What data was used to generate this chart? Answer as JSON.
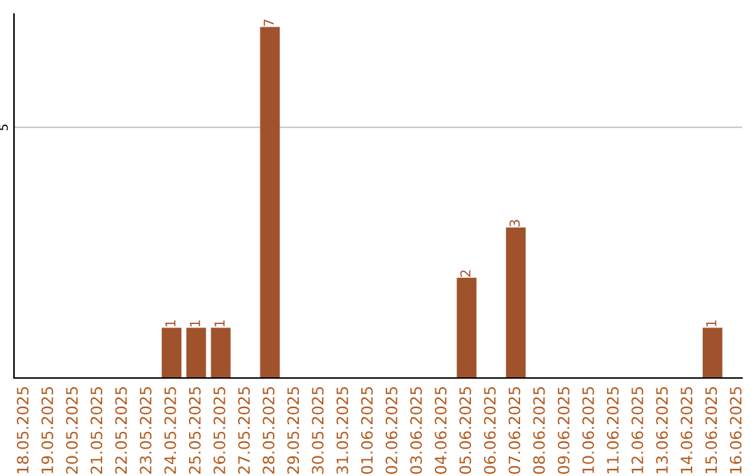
{
  "chart_data": {
    "type": "bar",
    "categories": [
      "18.05.2025",
      "19.05.2025",
      "20.05.2025",
      "21.05.2025",
      "22.05.2025",
      "23.05.2025",
      "24.05.2025",
      "25.05.2025",
      "26.05.2025",
      "27.05.2025",
      "28.05.2025",
      "29.05.2025",
      "30.05.2025",
      "31.05.2025",
      "01.06.2025",
      "02.06.2025",
      "03.06.2025",
      "04.06.2025",
      "05.06.2025",
      "06.06.2025",
      "07.06.2025",
      "08.06.2025",
      "09.06.2025",
      "10.06.2025",
      "11.06.2025",
      "12.06.2025",
      "13.06.2025",
      "14.06.2025",
      "15.06.2025",
      "16.06.2025"
    ],
    "values": [
      0,
      0,
      0,
      0,
      0,
      0,
      1,
      1,
      1,
      0,
      7,
      0,
      0,
      0,
      0,
      0,
      0,
      0,
      2,
      0,
      3,
      0,
      0,
      0,
      0,
      0,
      0,
      0,
      1,
      0
    ],
    "value_labels": [
      null,
      null,
      null,
      null,
      null,
      null,
      "1",
      "1",
      "1",
      null,
      "7",
      null,
      null,
      null,
      null,
      null,
      null,
      null,
      "2",
      null,
      "3",
      null,
      null,
      null,
      null,
      null,
      null,
      null,
      "1",
      null
    ],
    "color": "#a0522d",
    "ylim": [
      0,
      7.26
    ],
    "yticks": [
      5
    ],
    "grid": "y"
  }
}
